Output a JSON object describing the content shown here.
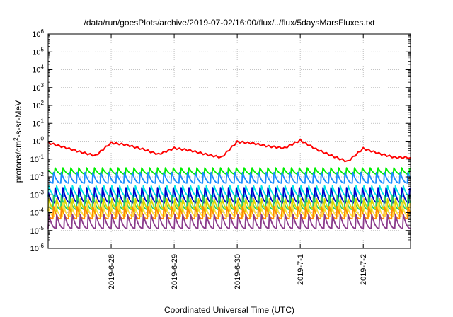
{
  "chart_data": {
    "type": "line",
    "title": "/data/run/goesPlots/archive/2019-07-02/16:00/flux/../flux/5daysMarsFluxes.txt",
    "xlabel": "Coordinated Universal Time (UTC)",
    "ylabel": {
      "base": "protons/cm",
      "sup": "2",
      "rest": "-s-sr-MeV"
    },
    "yscale": "log",
    "ylim_exp": [
      -6,
      6
    ],
    "ytick_exponents": [
      -6,
      -5,
      -4,
      -3,
      -2,
      -1,
      0,
      1,
      2,
      3,
      4,
      5,
      6
    ],
    "ytick_base": "10",
    "xlim": [
      "2019-06-27 00:00",
      "2019-07-02 18:00"
    ],
    "xticks": [
      {
        "date": "2019-06-28 00:00",
        "label": "2019-6-28"
      },
      {
        "date": "2019-06-29 00:00",
        "label": "2019-6-29"
      },
      {
        "date": "2019-06-30 00:00",
        "label": "2019-6-30"
      },
      {
        "date": "2019-07-01 00:00",
        "label": "2019-7-1"
      },
      {
        "date": "2019-07-02 00:00",
        "label": "2019-7-2"
      }
    ],
    "grid": true,
    "legend": "none",
    "sawtooth_period_hours": 3,
    "series": [
      {
        "color": "#ff0000",
        "points": [
          [
            "2019-06-27 00:00",
            0.8
          ],
          [
            "2019-06-27 06:00",
            0.45
          ],
          [
            "2019-06-27 12:00",
            0.25
          ],
          [
            "2019-06-27 18:00",
            0.15
          ],
          [
            "2019-06-28 00:00",
            0.8
          ],
          [
            "2019-06-28 06:00",
            0.6
          ],
          [
            "2019-06-28 12:00",
            0.35
          ],
          [
            "2019-06-28 18:00",
            0.18
          ],
          [
            "2019-06-29 00:00",
            0.4
          ],
          [
            "2019-06-29 06:00",
            0.3
          ],
          [
            "2019-06-29 12:00",
            0.18
          ],
          [
            "2019-06-29 18:00",
            0.12
          ],
          [
            "2019-06-30 00:00",
            0.9
          ],
          [
            "2019-06-30 06:00",
            0.75
          ],
          [
            "2019-06-30 12:00",
            0.5
          ],
          [
            "2019-06-30 18:00",
            0.4
          ],
          [
            "2019-07-01 00:00",
            1.1
          ],
          [
            "2019-07-01 06:00",
            0.35
          ],
          [
            "2019-07-01 12:00",
            0.15
          ],
          [
            "2019-07-01 18:00",
            0.07
          ],
          [
            "2019-07-02 00:00",
            0.38
          ],
          [
            "2019-07-02 06:00",
            0.2
          ],
          [
            "2019-07-02 12:00",
            0.12
          ],
          [
            "2019-07-02 18:00",
            0.12
          ]
        ]
      },
      {
        "color": "#00ee00",
        "peak": 0.032,
        "trough": 0.014
      },
      {
        "color": "#1a8cff",
        "peak": 0.018,
        "trough": 0.0045
      },
      {
        "color": "#00e5e5",
        "peak": 0.0032,
        "trough": 0.0008
      },
      {
        "color": "#0000cc",
        "peak": 0.0025,
        "trough": 0.00035
      },
      {
        "color": "#26cc66",
        "peak": 0.0009,
        "trough": 0.00015
      },
      {
        "color": "#d8d800",
        "peak": 0.0006,
        "trough": 0.00012
      },
      {
        "color": "#ffe040",
        "peak": 0.00035,
        "trough": 6e-05
      },
      {
        "color": "#ff8a00",
        "peak": 0.00022,
        "trough": 4.5e-05
      },
      {
        "color": "#8b3a8b",
        "peak": 8e-05,
        "trough": 1.3e-05
      }
    ]
  }
}
